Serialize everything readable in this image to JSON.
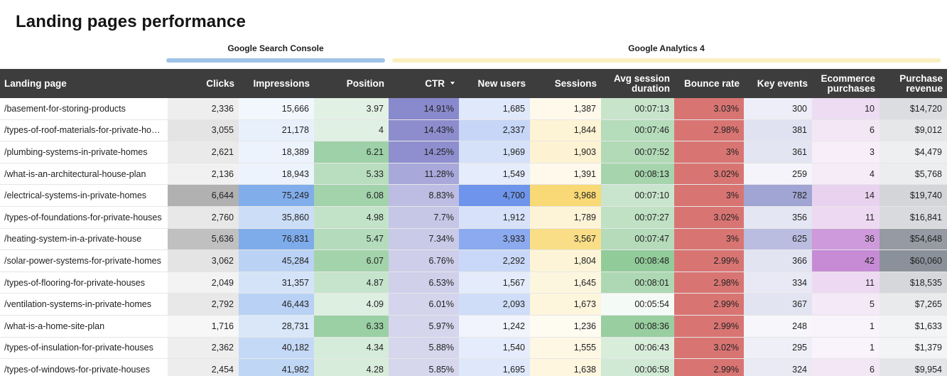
{
  "title": "Landing pages performance",
  "groups": {
    "search_console": "Google Search Console",
    "analytics": "Google Analytics 4"
  },
  "columns": {
    "landing_page": "Landing page",
    "clicks": "Clicks",
    "impressions": "Impressions",
    "position": "Position",
    "ctr": "CTR",
    "new_users": "New users",
    "sessions": "Sessions",
    "avg_session_duration": "Avg session duration",
    "bounce_rate": "Bounce rate",
    "key_events": "Key events",
    "ecommerce_purchases": "Ecommerce purchases",
    "purchase_revenue": "Purchase revenue"
  },
  "sort": {
    "column": "ctr",
    "direction": "descending",
    "icon": "sort-descending-icon"
  },
  "heat_colors": {
    "clicks": "#9e9e9e",
    "impressions": "#5e97e6",
    "position": "#58b068",
    "ctr": "#6c6cc0",
    "new_users": "#4a7be6",
    "sessions": "#f7cf52",
    "avg_session_duration": "#77be81",
    "bounce_rate": "#d66e6c",
    "key_events": "#8a8ec8",
    "ecommerce_purchases": "#b96ecb",
    "purchase_revenue": "#6e7582"
  },
  "rows": [
    {
      "page": "/basement-for-storing-products",
      "clicks": "2,336",
      "impressions": "15,666",
      "position": "3.97",
      "ctr": "14.91%",
      "new_users": "1,685",
      "sessions": "1,387",
      "avg_session_duration": "00:07:13",
      "bounce_rate": "3.03%",
      "key_events": "300",
      "ecommerce_purchases": "10",
      "purchase_revenue": "$14,720"
    },
    {
      "page": "/types-of-roof-materials-for-private-hou...",
      "clicks": "3,055",
      "impressions": "21,178",
      "position": "4",
      "ctr": "14.43%",
      "new_users": "2,337",
      "sessions": "1,844",
      "avg_session_duration": "00:07:46",
      "bounce_rate": "2.98%",
      "key_events": "381",
      "ecommerce_purchases": "6",
      "purchase_revenue": "$9,012"
    },
    {
      "page": "/plumbing-systems-in-private-homes",
      "clicks": "2,621",
      "impressions": "18,389",
      "position": "6.21",
      "ctr": "14.25%",
      "new_users": "1,969",
      "sessions": "1,903",
      "avg_session_duration": "00:07:52",
      "bounce_rate": "3%",
      "key_events": "361",
      "ecommerce_purchases": "3",
      "purchase_revenue": "$4,479"
    },
    {
      "page": "/what-is-an-architectural-house-plan",
      "clicks": "2,136",
      "impressions": "18,943",
      "position": "5.33",
      "ctr": "11.28%",
      "new_users": "1,549",
      "sessions": "1,391",
      "avg_session_duration": "00:08:13",
      "bounce_rate": "3.02%",
      "key_events": "259",
      "ecommerce_purchases": "4",
      "purchase_revenue": "$5,768"
    },
    {
      "page": "/electrical-systems-in-private-homes",
      "clicks": "6,644",
      "impressions": "75,249",
      "position": "6.08",
      "ctr": "8.83%",
      "new_users": "4,700",
      "sessions": "3,968",
      "avg_session_duration": "00:07:10",
      "bounce_rate": "3%",
      "key_events": "782",
      "ecommerce_purchases": "14",
      "purchase_revenue": "$19,740"
    },
    {
      "page": "/types-of-foundations-for-private-houses",
      "clicks": "2,760",
      "impressions": "35,860",
      "position": "4.98",
      "ctr": "7.7%",
      "new_users": "1,912",
      "sessions": "1,789",
      "avg_session_duration": "00:07:27",
      "bounce_rate": "3.02%",
      "key_events": "356",
      "ecommerce_purchases": "11",
      "purchase_revenue": "$16,841"
    },
    {
      "page": "/heating-system-in-a-private-house",
      "clicks": "5,636",
      "impressions": "76,831",
      "position": "5.47",
      "ctr": "7.34%",
      "new_users": "3,933",
      "sessions": "3,567",
      "avg_session_duration": "00:07:47",
      "bounce_rate": "3%",
      "key_events": "625",
      "ecommerce_purchases": "36",
      "purchase_revenue": "$54,648"
    },
    {
      "page": "/solar-power-systems-for-private-homes",
      "clicks": "3,062",
      "impressions": "45,284",
      "position": "6.07",
      "ctr": "6.76%",
      "new_users": "2,292",
      "sessions": "1,804",
      "avg_session_duration": "00:08:48",
      "bounce_rate": "2.99%",
      "key_events": "366",
      "ecommerce_purchases": "42",
      "purchase_revenue": "$60,060"
    },
    {
      "page": "/types-of-flooring-for-private-houses",
      "clicks": "2,049",
      "impressions": "31,357",
      "position": "4.87",
      "ctr": "6.53%",
      "new_users": "1,567",
      "sessions": "1,645",
      "avg_session_duration": "00:08:01",
      "bounce_rate": "2.98%",
      "key_events": "334",
      "ecommerce_purchases": "11",
      "purchase_revenue": "$18,535"
    },
    {
      "page": "/ventilation-systems-in-private-homes",
      "clicks": "2,792",
      "impressions": "46,443",
      "position": "4.09",
      "ctr": "6.01%",
      "new_users": "2,093",
      "sessions": "1,673",
      "avg_session_duration": "00:05:54",
      "bounce_rate": "2.99%",
      "key_events": "367",
      "ecommerce_purchases": "5",
      "purchase_revenue": "$7,265"
    },
    {
      "page": "/what-is-a-home-site-plan",
      "clicks": "1,716",
      "impressions": "28,731",
      "position": "6.33",
      "ctr": "5.97%",
      "new_users": "1,242",
      "sessions": "1,236",
      "avg_session_duration": "00:08:36",
      "bounce_rate": "2.99%",
      "key_events": "248",
      "ecommerce_purchases": "1",
      "purchase_revenue": "$1,633"
    },
    {
      "page": "/types-of-insulation-for-private-houses",
      "clicks": "2,362",
      "impressions": "40,182",
      "position": "4.34",
      "ctr": "5.88%",
      "new_users": "1,540",
      "sessions": "1,555",
      "avg_session_duration": "00:06:43",
      "bounce_rate": "3.02%",
      "key_events": "295",
      "ecommerce_purchases": "1",
      "purchase_revenue": "$1,379"
    },
    {
      "page": "/types-of-windows-for-private-houses",
      "clicks": "2,454",
      "impressions": "41,982",
      "position": "4.28",
      "ctr": "5.85%",
      "new_users": "1,695",
      "sessions": "1,638",
      "avg_session_duration": "00:06:58",
      "bounce_rate": "2.99%",
      "key_events": "324",
      "ecommerce_purchases": "6",
      "purchase_revenue": "$9,954"
    }
  ]
}
